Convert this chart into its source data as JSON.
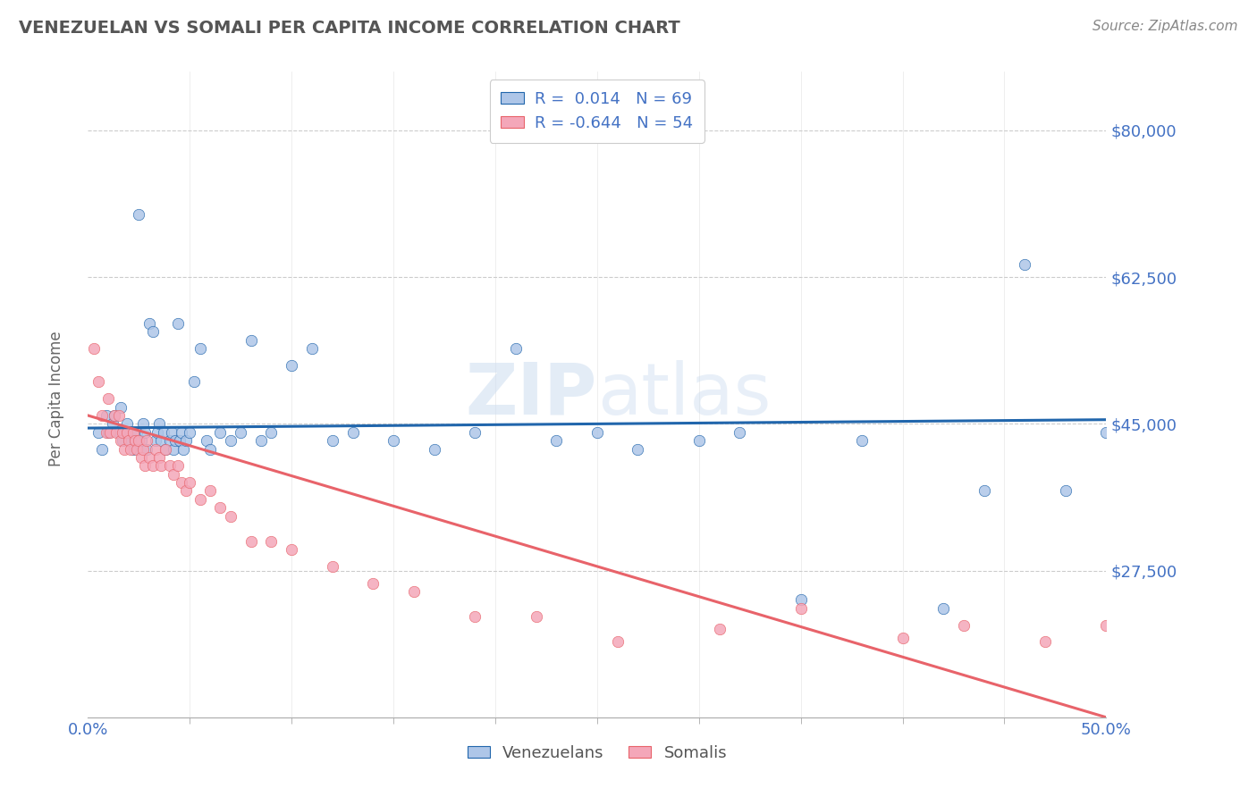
{
  "title": "VENEZUELAN VS SOMALI PER CAPITA INCOME CORRELATION CHART",
  "source": "Source: ZipAtlas.com",
  "ylabel": "Per Capita Income",
  "xlim": [
    0.0,
    0.5
  ],
  "ylim": [
    10000,
    87000
  ],
  "yticks": [
    27500,
    45000,
    62500,
    80000
  ],
  "ytick_labels": [
    "$27,500",
    "$45,000",
    "$62,500",
    "$80,000"
  ],
  "xticks": [
    0.0,
    0.5
  ],
  "xtick_labels": [
    "0.0%",
    "50.0%"
  ],
  "venezuelan_color": "#aec6e8",
  "somali_color": "#f4a7b9",
  "venezuelan_line_color": "#2166ac",
  "somali_line_color": "#e8636a",
  "legend_r_venezuelan": "0.014",
  "legend_n_venezuelan": "69",
  "legend_r_somali": "-0.644",
  "legend_n_somali": "54",
  "background_color": "#ffffff",
  "grid_color": "#cccccc",
  "venezuelan_x": [
    0.005,
    0.007,
    0.009,
    0.01,
    0.012,
    0.013,
    0.015,
    0.016,
    0.017,
    0.018,
    0.019,
    0.02,
    0.021,
    0.022,
    0.023,
    0.024,
    0.025,
    0.026,
    0.027,
    0.028,
    0.029,
    0.03,
    0.032,
    0.033,
    0.034,
    0.035,
    0.036,
    0.037,
    0.038,
    0.04,
    0.041,
    0.042,
    0.043,
    0.044,
    0.045,
    0.046,
    0.047,
    0.048,
    0.05,
    0.052,
    0.055,
    0.058,
    0.06,
    0.065,
    0.07,
    0.075,
    0.08,
    0.085,
    0.09,
    0.1,
    0.11,
    0.12,
    0.13,
    0.15,
    0.17,
    0.19,
    0.21,
    0.23,
    0.25,
    0.27,
    0.3,
    0.32,
    0.35,
    0.38,
    0.42,
    0.44,
    0.46,
    0.48,
    0.5
  ],
  "venezuelan_y": [
    44000,
    42000,
    46000,
    44000,
    45000,
    46000,
    44000,
    47000,
    43000,
    44000,
    45000,
    43000,
    44000,
    42000,
    43000,
    44000,
    70000,
    43000,
    45000,
    44000,
    42000,
    57000,
    56000,
    43000,
    44000,
    45000,
    43000,
    44000,
    42000,
    43000,
    44000,
    42000,
    43000,
    57000,
    43000,
    44000,
    42000,
    43000,
    44000,
    50000,
    54000,
    43000,
    42000,
    44000,
    43000,
    44000,
    55000,
    43000,
    44000,
    52000,
    54000,
    43000,
    44000,
    43000,
    42000,
    44000,
    54000,
    43000,
    44000,
    42000,
    43000,
    44000,
    24000,
    43000,
    23000,
    37000,
    64000,
    37000,
    44000
  ],
  "somali_x": [
    0.003,
    0.005,
    0.007,
    0.009,
    0.01,
    0.011,
    0.013,
    0.014,
    0.015,
    0.016,
    0.017,
    0.018,
    0.019,
    0.02,
    0.021,
    0.022,
    0.023,
    0.024,
    0.025,
    0.026,
    0.027,
    0.028,
    0.029,
    0.03,
    0.032,
    0.033,
    0.035,
    0.036,
    0.038,
    0.04,
    0.042,
    0.044,
    0.046,
    0.048,
    0.05,
    0.055,
    0.06,
    0.065,
    0.07,
    0.08,
    0.09,
    0.1,
    0.12,
    0.14,
    0.16,
    0.19,
    0.22,
    0.26,
    0.31,
    0.35,
    0.4,
    0.43,
    0.47,
    0.5
  ],
  "somali_y": [
    54000,
    50000,
    46000,
    44000,
    48000,
    44000,
    46000,
    44000,
    46000,
    43000,
    44000,
    42000,
    44000,
    43000,
    42000,
    44000,
    43000,
    42000,
    43000,
    41000,
    42000,
    40000,
    43000,
    41000,
    40000,
    42000,
    41000,
    40000,
    42000,
    40000,
    39000,
    40000,
    38000,
    37000,
    38000,
    36000,
    37000,
    35000,
    34000,
    31000,
    31000,
    30000,
    28000,
    26000,
    25000,
    22000,
    22000,
    19000,
    20500,
    23000,
    19500,
    21000,
    19000,
    21000
  ],
  "ven_trend_x": [
    0.0,
    0.5
  ],
  "ven_trend_y": [
    44500,
    45500
  ],
  "som_trend_x": [
    0.0,
    0.5
  ],
  "som_trend_y": [
    46000,
    10000
  ]
}
